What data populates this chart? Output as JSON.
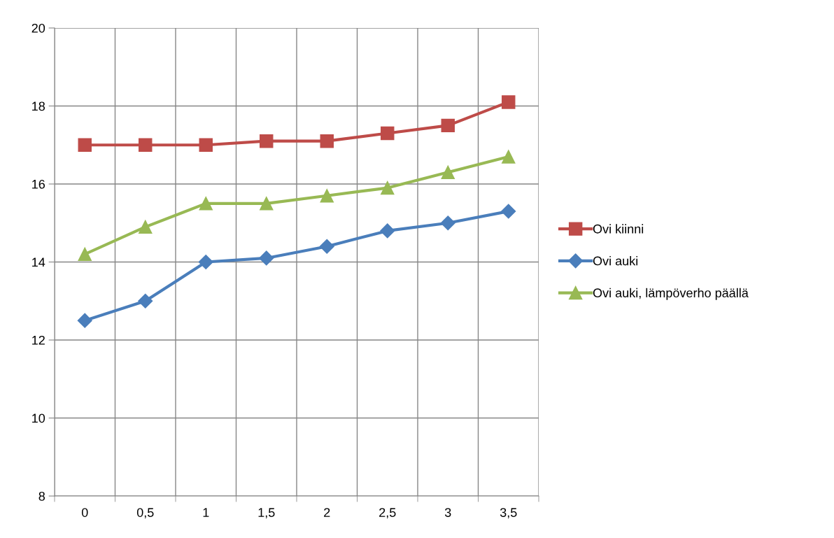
{
  "chart_data": {
    "type": "line",
    "categories": [
      "0",
      "0,5",
      "1",
      "1,5",
      "2",
      "2,5",
      "3",
      "3,5"
    ],
    "series": [
      {
        "name": "Ovi kiinni",
        "color": "#be4b48",
        "marker": "square",
        "values": [
          17.0,
          17.0,
          17.0,
          17.1,
          17.1,
          17.3,
          17.5,
          18.1
        ]
      },
      {
        "name": "Ovi auki",
        "color": "#4a7ebb",
        "marker": "diamond",
        "values": [
          12.5,
          13.0,
          14.0,
          14.1,
          14.4,
          14.8,
          15.0,
          15.3
        ]
      },
      {
        "name": "Ovi auki, lämpöverho päällä",
        "color": "#98b954",
        "marker": "triangle",
        "values": [
          14.2,
          14.9,
          15.5,
          15.5,
          15.7,
          15.9,
          16.3,
          16.7
        ]
      }
    ],
    "ylim": [
      8,
      20
    ],
    "yticks": [
      8,
      10,
      12,
      14,
      16,
      18,
      20
    ],
    "grid": true,
    "legend": "right",
    "line_style": "solid"
  }
}
